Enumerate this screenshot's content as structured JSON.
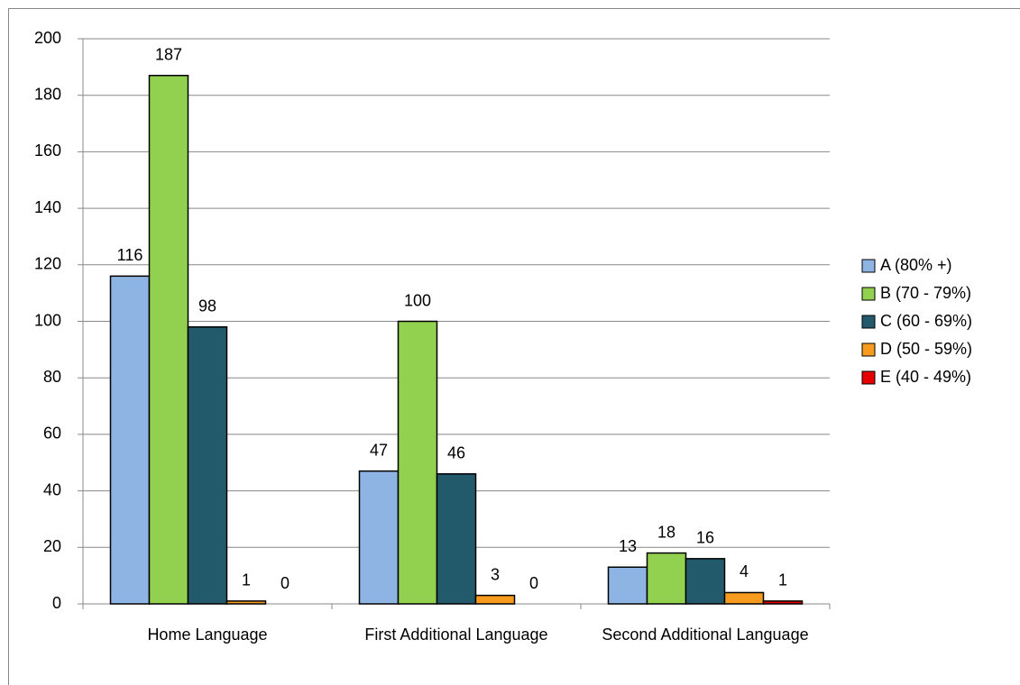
{
  "chart_data": {
    "type": "bar",
    "categories": [
      "Home Language",
      "First Additional Language",
      "Second Additional Language"
    ],
    "series": [
      {
        "name": "A (80% +)",
        "color": "#8eb4e3",
        "values": [
          116,
          47,
          13
        ]
      },
      {
        "name": "B (70 - 79%)",
        "color": "#92d050",
        "values": [
          187,
          100,
          18
        ]
      },
      {
        "name": "C (60 - 69%)",
        "color": "#235a6b",
        "values": [
          98,
          46,
          16
        ]
      },
      {
        "name": "D (50 - 59%)",
        "color": "#f79b1e",
        "values": [
          1,
          3,
          4
        ]
      },
      {
        "name": "E (40 - 49%)",
        "color": "#e80000",
        "values": [
          0,
          0,
          1
        ]
      }
    ],
    "ylim": [
      0,
      200
    ],
    "yticks": [
      0,
      20,
      40,
      60,
      80,
      100,
      120,
      140,
      160,
      180,
      200
    ],
    "grid": true,
    "legend": "right"
  }
}
